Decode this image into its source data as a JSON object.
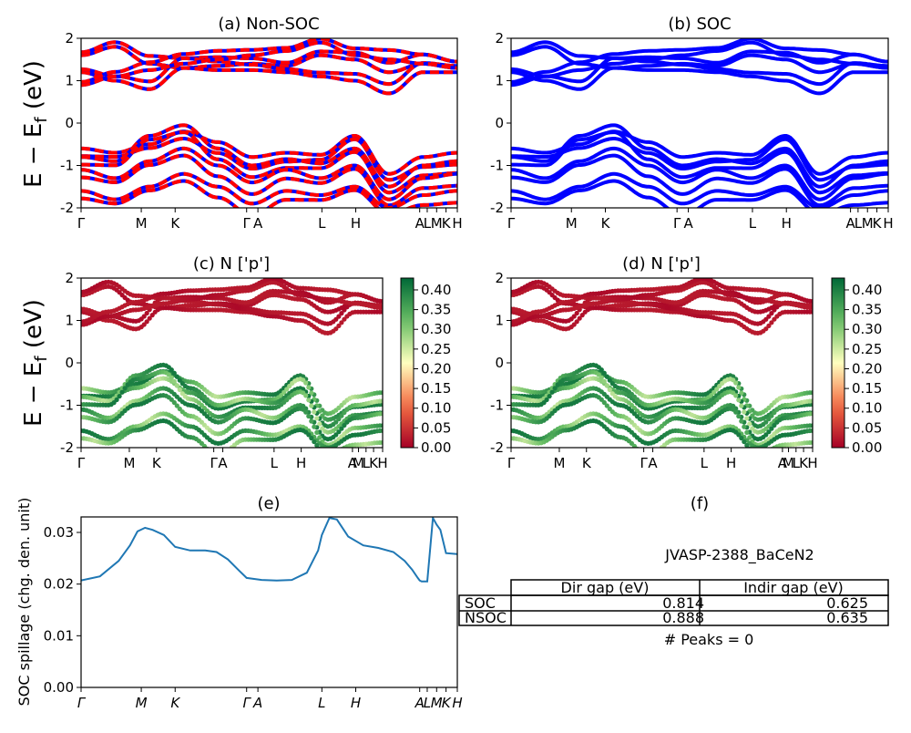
{
  "figure": {
    "ylabel_band": "E − E",
    "ylabel_band_sub": "f",
    "ylabel_band_unit": " (eV)",
    "ylabel_spillage": "SOC spillage (chg. den. unit)"
  },
  "chart_data": [
    {
      "type": "line",
      "title": "(a) Non-SOC",
      "ylabel": "E − E_f (eV)",
      "ylim": [
        -2,
        2
      ],
      "y_ticks": [
        -2,
        -1,
        0,
        1,
        2
      ],
      "x_ticks": [
        "Γ",
        "M",
        "K",
        "Γ",
        "A",
        "L",
        "H",
        "A",
        "L",
        "M",
        "K",
        "H"
      ],
      "x_positions": [
        0,
        0.16,
        0.25,
        0.44,
        0.47,
        0.64,
        0.73,
        0.9,
        0.92,
        0.945,
        0.97,
        1.0
      ],
      "series_colors": [
        "#ff0000",
        "#0000ff"
      ],
      "valence_bands": [
        [
          -0.6,
          -0.7,
          -0.5,
          -0.2,
          -0.45,
          -0.8,
          -0.7,
          -0.75,
          -0.3,
          -1.2,
          -0.8,
          -0.7
        ],
        [
          -0.8,
          -0.9,
          -0.3,
          -0.05,
          -0.6,
          -1.0,
          -0.85,
          -0.95,
          -0.6,
          -1.5,
          -1.0,
          -0.9
        ],
        [
          -1.1,
          -1.3,
          -0.9,
          -0.6,
          -1.0,
          -1.4,
          -1.1,
          -1.3,
          -1.0,
          -1.8,
          -1.3,
          -1.2
        ],
        [
          -1.6,
          -1.8,
          -1.5,
          -1.2,
          -1.5,
          -1.9,
          -1.6,
          -1.7,
          -1.5,
          -2.0,
          -1.7,
          -1.6
        ]
      ],
      "conduction_bands": [
        [
          1.6,
          1.8,
          1.4,
          1.3,
          1.35,
          1.4,
          1.35,
          1.6,
          1.5,
          1.2,
          1.4,
          1.3
        ],
        [
          1.2,
          1.0,
          0.8,
          1.3,
          1.25,
          1.25,
          1.2,
          1.1,
          1.0,
          0.7,
          1.2,
          1.2
        ],
        [
          0.9,
          1.1,
          1.25,
          1.4,
          1.5,
          1.6,
          1.7,
          1.9,
          1.6,
          1.5,
          1.4,
          1.3
        ]
      ]
    },
    {
      "type": "line",
      "title": "(b) SOC",
      "ylim": [
        -2,
        2
      ],
      "y_ticks": [
        -2,
        -1,
        0,
        1,
        2
      ],
      "x_ticks": [
        "Γ",
        "M",
        "K",
        "Γ",
        "A",
        "L",
        "H",
        "A",
        "L",
        "M",
        "K",
        "H"
      ],
      "series_colors": [
        "#0000ff"
      ]
    },
    {
      "type": "scatter",
      "title": "(c)  N ['p']",
      "ylabel": "E − E_f (eV)",
      "ylim": [
        -2,
        2
      ],
      "y_ticks": [
        -2,
        -1,
        0,
        1,
        2
      ],
      "x_ticks": [
        "Γ",
        "M",
        "K",
        "Γ",
        "A",
        "L",
        "H",
        "A",
        "M",
        "L",
        "K",
        "H"
      ],
      "colorbar": {
        "min": 0.0,
        "max": 0.43,
        "ticks": [
          "0.00",
          "0.05",
          "0.10",
          "0.15",
          "0.20",
          "0.25",
          "0.30",
          "0.35",
          "0.40"
        ],
        "colormap": "RdYlGn"
      }
    },
    {
      "type": "scatter",
      "title": "(d) N ['p']",
      "ylim": [
        -2,
        2
      ],
      "y_ticks": [
        -2,
        -1,
        0,
        1,
        2
      ],
      "x_ticks": [
        "Γ",
        "M",
        "K",
        "Γ",
        "A",
        "L",
        "H",
        "A",
        "M",
        "L",
        "K",
        "H"
      ],
      "colorbar": {
        "min": 0.0,
        "max": 0.43,
        "ticks": [
          "0.00",
          "0.05",
          "0.10",
          "0.15",
          "0.20",
          "0.25",
          "0.30",
          "0.35",
          "0.40"
        ],
        "colormap": "RdYlGn"
      }
    },
    {
      "type": "line",
      "title": "(e)",
      "ylabel": "SOC spillage (chg. den. unit)",
      "ylim": [
        0.0,
        0.033
      ],
      "y_ticks": [
        "0.00",
        "0.01",
        "0.02",
        "0.03"
      ],
      "x_ticks": [
        "Γ",
        "M",
        "K",
        "Γ",
        "A",
        "L",
        "H",
        "A",
        "L",
        "M",
        "K",
        "H"
      ],
      "x": [
        0,
        0.05,
        0.1,
        0.13,
        0.15,
        0.17,
        0.19,
        0.22,
        0.25,
        0.29,
        0.33,
        0.36,
        0.39,
        0.42,
        0.44,
        0.48,
        0.52,
        0.56,
        0.6,
        0.63,
        0.64,
        0.66,
        0.68,
        0.71,
        0.75,
        0.79,
        0.83,
        0.86,
        0.88,
        0.895,
        0.9,
        0.905,
        0.92,
        0.935,
        0.945,
        0.955,
        0.97,
        1.0
      ],
      "y": [
        0.0207,
        0.0215,
        0.0245,
        0.0275,
        0.0302,
        0.0309,
        0.0305,
        0.0295,
        0.0272,
        0.0265,
        0.0265,
        0.0262,
        0.0248,
        0.0226,
        0.0212,
        0.0208,
        0.0207,
        0.0208,
        0.0222,
        0.0265,
        0.0295,
        0.0328,
        0.0325,
        0.0292,
        0.0275,
        0.027,
        0.0262,
        0.0245,
        0.0228,
        0.0212,
        0.0207,
        0.0205,
        0.0205,
        0.0328,
        0.0315,
        0.0305,
        0.026,
        0.0258
      ],
      "series_colors": [
        "#1f77b4"
      ]
    },
    {
      "type": "table",
      "title": "(f)",
      "subtitle": "JVASP-2388_BaCeN2",
      "columns": [
        "Dir gap (eV)",
        "Indir gap (eV)"
      ],
      "rows": [
        {
          "label": "SOC",
          "dir": "0.814",
          "indir": "0.625"
        },
        {
          "label": "NSOC",
          "dir": "0.888",
          "indir": "0.635"
        }
      ],
      "footer": "# Peaks = 0"
    }
  ]
}
